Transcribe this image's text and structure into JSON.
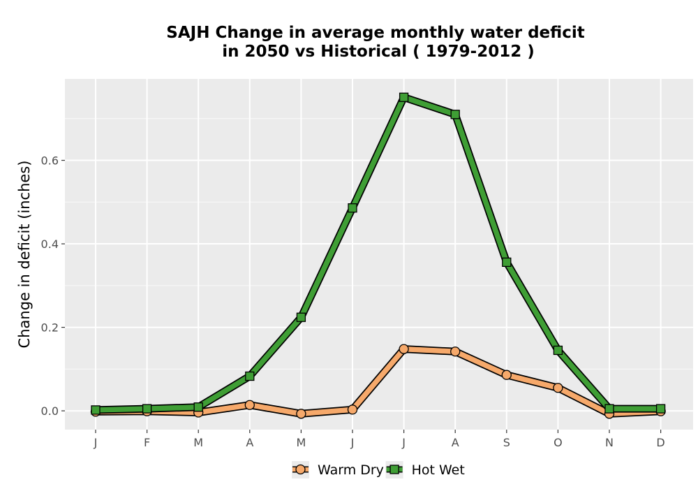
{
  "chart_data": {
    "type": "line",
    "title_lines": [
      "SAJH  Change in average monthly water deficit",
      "in 2050 vs Historical ( 1979-2012 )"
    ],
    "xlabel": "",
    "ylabel": "Change in deficit (inches)",
    "categories": [
      "J",
      "F",
      "M",
      "A",
      "M",
      "J",
      "J",
      "A",
      "S",
      "O",
      "N",
      "D"
    ],
    "y_ticks": [
      "0.0",
      "0.2",
      "0.4",
      "0.6"
    ],
    "y_tick_values": [
      0.0,
      0.2,
      0.4,
      0.6
    ],
    "ylim": [
      -0.045,
      0.795
    ],
    "grid": true,
    "legend_position": "bottom",
    "series": [
      {
        "name": "Warm Dry",
        "color": "#f6a96b",
        "marker": "circle",
        "values": [
          -0.002,
          -0.001,
          -0.004,
          0.014,
          -0.007,
          0.003,
          0.148,
          0.142,
          0.086,
          0.055,
          -0.007,
          -0.001
        ]
      },
      {
        "name": "Hot Wet",
        "color": "#3f9e35",
        "marker": "square",
        "values": [
          0.002,
          0.005,
          0.009,
          0.083,
          0.224,
          0.486,
          0.751,
          0.71,
          0.356,
          0.145,
          0.005,
          0.005
        ]
      }
    ]
  }
}
